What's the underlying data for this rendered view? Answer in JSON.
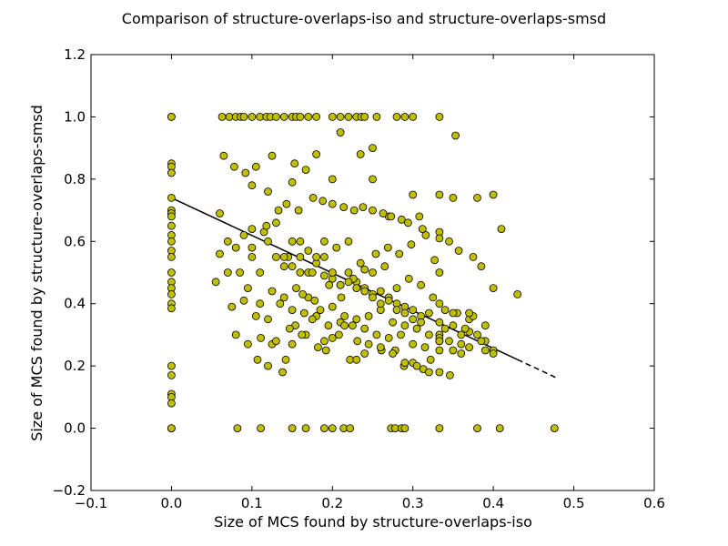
{
  "chart_data": {
    "type": "scatter",
    "title": "Comparison of structure-overlaps-iso and structure-overlaps-smsd",
    "xlabel": "Size of MCS found by structure-overlaps-iso",
    "ylabel": "Size of MCS found by structure-overlaps-smsd",
    "xlim": [
      -0.1,
      0.6
    ],
    "ylim": [
      -0.2,
      1.2
    ],
    "xticks": [
      -0.1,
      0.0,
      0.1,
      0.2,
      0.3,
      0.4,
      0.5,
      0.6
    ],
    "yticks": [
      -0.2,
      0.0,
      0.2,
      0.4,
      0.6,
      0.8,
      1.0,
      1.2
    ],
    "xtick_labels": [
      "−0.1",
      "0.0",
      "0.1",
      "0.2",
      "0.3",
      "0.4",
      "0.5",
      "0.6"
    ],
    "ytick_labels": [
      "−0.2",
      "0.0",
      "0.2",
      "0.4",
      "0.6",
      "0.8",
      "1.0",
      "1.2"
    ],
    "grid": false,
    "colors": {
      "marker_fill": "#bfbf00",
      "marker_edge": "#000000",
      "fit_line": "#000000"
    },
    "fit_line": {
      "x": [
        0.0,
        0.48
      ],
      "y": [
        0.74,
        0.16
      ]
    },
    "x": [
      0.0,
      0.0,
      0.0,
      0.0,
      0.0,
      0.0,
      0.0,
      0.0,
      0.0,
      0.0,
      0.0,
      0.0,
      0.0,
      0.0,
      0.0,
      0.0,
      0.0,
      0.0,
      0.0,
      0.0,
      0.0,
      0.0,
      0.0,
      0.0,
      0.0,
      0.0,
      0.0,
      0.063,
      0.072,
      0.08,
      0.086,
      0.09,
      0.1,
      0.11,
      0.118,
      0.123,
      0.13,
      0.14,
      0.15,
      0.155,
      0.16,
      0.17,
      0.18,
      0.2,
      0.21,
      0.22,
      0.23,
      0.236,
      0.24,
      0.255,
      0.28,
      0.29,
      0.3,
      0.333,
      0.082,
      0.111,
      0.15,
      0.167,
      0.19,
      0.2,
      0.214,
      0.222,
      0.273,
      0.278,
      0.286,
      0.29,
      0.333,
      0.38,
      0.408,
      0.476,
      0.065,
      0.078,
      0.092,
      0.105,
      0.125,
      0.153,
      0.167,
      0.18,
      0.21,
      0.235,
      0.25,
      0.06,
      0.1,
      0.12,
      0.15,
      0.2,
      0.25,
      0.27,
      0.3,
      0.353,
      0.35,
      0.333,
      0.38,
      0.4,
      0.41,
      0.43,
      0.06,
      0.07,
      0.08,
      0.09,
      0.1,
      0.11,
      0.12,
      0.13,
      0.14,
      0.15,
      0.16,
      0.17,
      0.18,
      0.19,
      0.2,
      0.21,
      0.22,
      0.23,
      0.24,
      0.25,
      0.26,
      0.27,
      0.28,
      0.29,
      0.3,
      0.31,
      0.32,
      0.333,
      0.34,
      0.35,
      0.36,
      0.37,
      0.38,
      0.39,
      0.4,
      0.07,
      0.085,
      0.1,
      0.115,
      0.13,
      0.145,
      0.16,
      0.175,
      0.19,
      0.205,
      0.22,
      0.235,
      0.25,
      0.265,
      0.28,
      0.295,
      0.31,
      0.325,
      0.34,
      0.355,
      0.37,
      0.055,
      0.075,
      0.095,
      0.11,
      0.125,
      0.14,
      0.155,
      0.17,
      0.185,
      0.2,
      0.215,
      0.23,
      0.245,
      0.26,
      0.275,
      0.29,
      0.305,
      0.32,
      0.333,
      0.345,
      0.36,
      0.375,
      0.39,
      0.09,
      0.105,
      0.12,
      0.135,
      0.15,
      0.165,
      0.18,
      0.195,
      0.21,
      0.225,
      0.24,
      0.255,
      0.27,
      0.285,
      0.3,
      0.315,
      0.333,
      0.35,
      0.365,
      0.1,
      0.118,
      0.133,
      0.143,
      0.158,
      0.176,
      0.188,
      0.2,
      0.214,
      0.227,
      0.238,
      0.25,
      0.263,
      0.273,
      0.286,
      0.294,
      0.308,
      0.316,
      0.333,
      0.345,
      0.357,
      0.375,
      0.385,
      0.4,
      0.111,
      0.125,
      0.142,
      0.154,
      0.167,
      0.182,
      0.192,
      0.208,
      0.222,
      0.231,
      0.24,
      0.261,
      0.278,
      0.289,
      0.3,
      0.313,
      0.322,
      0.333,
      0.346,
      0.36,
      0.37,
      0.385,
      0.4,
      0.12,
      0.138,
      0.15,
      0.162,
      0.175,
      0.19,
      0.2,
      0.215,
      0.23,
      0.245,
      0.26,
      0.275,
      0.29,
      0.305,
      0.32,
      0.333,
      0.35,
      0.37,
      0.39,
      0.08,
      0.095,
      0.107,
      0.13,
      0.147,
      0.163,
      0.178,
      0.196,
      0.211,
      0.226,
      0.24,
      0.254,
      0.269,
      0.283,
      0.298,
      0.312,
      0.327,
      0.333,
      0.14,
      0.15,
      0.16,
      0.17,
      0.18,
      0.19,
      0.2,
      0.21,
      0.22,
      0.23,
      0.24,
      0.25,
      0.26,
      0.27,
      0.28,
      0.29,
      0.3,
      0.31,
      0.333,
      0.333,
      0.333,
      0.333,
      0.333,
      0.333
    ],
    "y": [
      1.0,
      1.0,
      0.85,
      0.84,
      0.82,
      0.74,
      0.7,
      0.69,
      0.68,
      0.65,
      0.62,
      0.6,
      0.57,
      0.55,
      0.5,
      0.47,
      0.45,
      0.43,
      0.4,
      0.385,
      0.2,
      0.17,
      0.11,
      0.1,
      0.08,
      0.0,
      0.0,
      1.0,
      1.0,
      1.0,
      1.0,
      1.0,
      1.0,
      1.0,
      1.0,
      1.0,
      1.0,
      1.0,
      1.0,
      1.0,
      1.0,
      1.0,
      1.0,
      1.0,
      1.0,
      1.0,
      1.0,
      1.0,
      1.0,
      1.0,
      1.0,
      1.0,
      1.0,
      1.0,
      0.0,
      0.0,
      0.0,
      0.0,
      0.0,
      0.0,
      0.0,
      0.0,
      0.0,
      0.0,
      0.0,
      0.0,
      0.0,
      0.0,
      0.0,
      0.0,
      0.875,
      0.84,
      0.82,
      0.84,
      0.875,
      0.85,
      0.83,
      0.88,
      0.95,
      0.88,
      0.9,
      0.69,
      0.78,
      0.76,
      0.79,
      0.8,
      0.8,
      0.68,
      0.75,
      0.94,
      0.74,
      0.75,
      0.74,
      0.75,
      0.64,
      0.43,
      0.56,
      0.6,
      0.58,
      0.62,
      0.55,
      0.5,
      0.6,
      0.55,
      0.52,
      0.6,
      0.55,
      0.5,
      0.53,
      0.49,
      0.48,
      0.46,
      0.5,
      0.47,
      0.45,
      0.43,
      0.44,
      0.42,
      0.4,
      0.39,
      0.38,
      0.36,
      0.37,
      0.34,
      0.32,
      0.33,
      0.3,
      0.31,
      0.3,
      0.28,
      0.25,
      0.5,
      0.5,
      0.58,
      0.63,
      0.66,
      0.55,
      0.6,
      0.5,
      0.55,
      0.58,
      0.6,
      0.53,
      0.5,
      0.52,
      0.45,
      0.48,
      0.46,
      0.42,
      0.38,
      0.37,
      0.35,
      0.47,
      0.39,
      0.45,
      0.4,
      0.44,
      0.42,
      0.45,
      0.42,
      0.38,
      0.39,
      0.36,
      0.35,
      0.36,
      0.38,
      0.34,
      0.33,
      0.32,
      0.3,
      0.3,
      0.28,
      0.27,
      0.36,
      0.33,
      0.41,
      0.36,
      0.35,
      0.4,
      0.38,
      0.37,
      0.36,
      0.33,
      0.34,
      0.33,
      0.32,
      0.3,
      0.29,
      0.3,
      0.27,
      0.26,
      0.28,
      0.25,
      0.32,
      0.64,
      0.65,
      0.7,
      0.72,
      0.7,
      0.74,
      0.73,
      0.72,
      0.71,
      0.7,
      0.71,
      0.7,
      0.69,
      0.68,
      0.67,
      0.66,
      0.68,
      0.62,
      0.63,
      0.6,
      0.57,
      0.55,
      0.52,
      0.45,
      0.29,
      0.27,
      0.22,
      0.33,
      0.3,
      0.26,
      0.25,
      0.3,
      0.22,
      0.28,
      0.24,
      0.25,
      0.25,
      0.2,
      0.21,
      0.19,
      0.22,
      0.18,
      0.17,
      0.24,
      0.26,
      0.28,
      0.24,
      0.2,
      0.18,
      0.27,
      0.3,
      0.35,
      0.28,
      0.29,
      0.33,
      0.22,
      0.27,
      0.26,
      0.24,
      0.21,
      0.2,
      0.18,
      0.28,
      0.37,
      0.37,
      0.25,
      0.3,
      0.27,
      0.22,
      0.28,
      0.32,
      0.43,
      0.41,
      0.46,
      0.42,
      0.48,
      0.51,
      0.56,
      0.58,
      0.56,
      0.59,
      0.64,
      0.54,
      0.61,
      0.55,
      0.52,
      0.5,
      0.57,
      0.55,
      0.6,
      0.5,
      0.46,
      0.47,
      0.45,
      0.44,
      0.42,
      0.4,
      0.41,
      0.38,
      0.37,
      0.35,
      0.34,
      0.3,
      0.29,
      0.28,
      0.5,
      0.4,
      0.25
    ]
  }
}
